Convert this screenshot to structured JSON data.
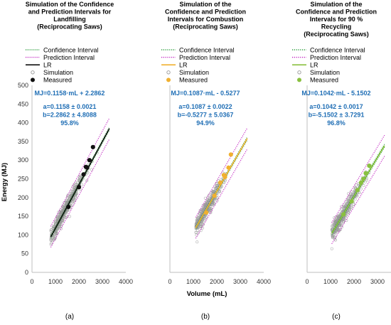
{
  "figure": {
    "y_axis_label": "Energy (MJ)",
    "x_axis_label": "Volume (mL)",
    "y_ticks": [
      0,
      50,
      100,
      150,
      200,
      250,
      300,
      350,
      400,
      450,
      500
    ],
    "x_ticks": [
      0,
      1000,
      2000,
      3000,
      4000
    ]
  },
  "chart_data": [
    {
      "type": "scatter",
      "panel_label": "(a)",
      "title": [
        "Simulation of the Confidence",
        "and Prediction Intervals for",
        "Landfilling",
        "(Reciprocating Saws)"
      ],
      "legend": {
        "placement": "top",
        "entries": [
          {
            "label": "Confidence Interval",
            "kind": "dotted",
            "color": "#2e9e3e"
          },
          {
            "label": "Prediction Interval",
            "kind": "dotted",
            "color": "#c020c0"
          },
          {
            "label": "LR",
            "kind": "line",
            "color": "#111111"
          },
          {
            "label": "Simulation",
            "kind": "ring",
            "color": "#999999"
          },
          {
            "label": "Measured",
            "kind": "dot",
            "color": "#111111"
          }
        ]
      },
      "equation": "MJ=0.1158·mL + 2.2862",
      "stats": [
        "a=0.1158 ± 0.0021",
        "b=2.2862 ± 4.8088",
        "95.8%"
      ],
      "slope": 0.1158,
      "intercept": 2.2862,
      "xlim": [
        0,
        4000
      ],
      "ylim": [
        0,
        500
      ],
      "x_range": [
        800,
        3300
      ],
      "simulation_count": 520,
      "measured": [
        [
          1550,
          175
        ],
        [
          2000,
          228
        ],
        [
          2200,
          262
        ],
        [
          2300,
          282
        ],
        [
          2350,
          280
        ],
        [
          2450,
          300
        ],
        [
          2600,
          335
        ]
      ],
      "colors": {
        "lr": "#111111",
        "measured": "#111111",
        "simulation": "#999999",
        "confidence": "#2e9e3e",
        "prediction": "#c020c0"
      }
    },
    {
      "type": "scatter",
      "panel_label": "(b)",
      "title": [
        "Simulation of the",
        "Confidence and Prediction",
        "Intervals for Combustion",
        "(Reciprocating Saws)"
      ],
      "legend": {
        "placement": "top",
        "entries": [
          {
            "label": "Confidence Interval",
            "kind": "dotted",
            "color": "#2e9e3e"
          },
          {
            "label": "Prediction Interval",
            "kind": "dotted",
            "color": "#c020c0"
          },
          {
            "label": "LR",
            "kind": "line",
            "color": "#f0b030"
          },
          {
            "label": "Simulation",
            "kind": "ring",
            "color": "#999999"
          },
          {
            "label": "Measured",
            "kind": "dot",
            "color": "#f0b030"
          }
        ]
      },
      "equation": "MJ=0.1087·mL - 0.5277",
      "stats": [
        "a=0.1087 ± 0.0022",
        "b=-0.5277 ± 5.0367",
        "94.9%"
      ],
      "slope": 0.1087,
      "intercept": -0.5277,
      "xlim": [
        0,
        4000
      ],
      "ylim": [
        0,
        500
      ],
      "x_range": [
        1100,
        3300
      ],
      "simulation_count": 520,
      "measured": [
        [
          1550,
          160
        ],
        [
          1900,
          205
        ],
        [
          2150,
          240
        ],
        [
          2300,
          260
        ],
        [
          2350,
          255
        ],
        [
          2500,
          280
        ],
        [
          2600,
          315
        ]
      ],
      "colors": {
        "lr": "#f0b030",
        "measured": "#f0b030",
        "simulation": "#999999",
        "confidence": "#2e9e3e",
        "prediction": "#c020c0"
      }
    },
    {
      "type": "scatter",
      "panel_label": "(c)",
      "title": [
        "Simulation of the",
        "Confidence and Prediction",
        "Intervals for 90 %",
        "Recycling",
        "(Reciprocating Saws)"
      ],
      "legend": {
        "placement": "top",
        "entries": [
          {
            "label": "Confidence Interval",
            "kind": "dotted",
            "color": "#2e9e3e"
          },
          {
            "label": "Prediction Interval",
            "kind": "dotted",
            "color": "#c020c0"
          },
          {
            "label": "LR",
            "kind": "line",
            "color": "#8ac040"
          },
          {
            "label": "Simulation",
            "kind": "ring",
            "color": "#999999"
          },
          {
            "label": "Measured",
            "kind": "dot",
            "color": "#8ac040"
          }
        ]
      },
      "equation": "MJ=0.1042·mL - 5.1502",
      "stats": [
        "a=0.1042 ± 0.0017",
        "b=-5.1502 ± 3.7291",
        "96.8%"
      ],
      "slope": 0.1042,
      "intercept": -5.1502,
      "xlim": [
        0,
        4000
      ],
      "ylim": [
        0,
        500
      ],
      "x_range": [
        1050,
        3300
      ],
      "simulation_count": 520,
      "measured": [
        [
          1550,
          155
        ],
        [
          1900,
          190
        ],
        [
          2150,
          220
        ],
        [
          2300,
          240
        ],
        [
          2400,
          250
        ],
        [
          2500,
          265
        ],
        [
          2650,
          285
        ]
      ],
      "colors": {
        "lr": "#8ac040",
        "measured": "#8ac040",
        "simulation": "#999999",
        "confidence": "#2e9e3e",
        "prediction": "#c020c0"
      }
    }
  ]
}
